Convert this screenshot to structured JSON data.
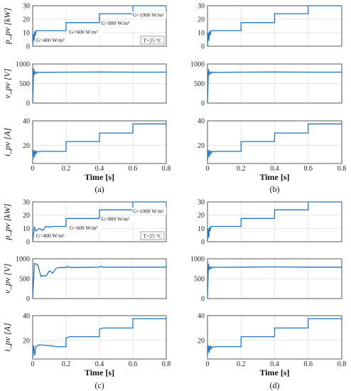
{
  "chart_data": [
    {
      "panel": "(a)",
      "type": "line",
      "xlabel": "Time [s]",
      "caption": "(a)",
      "xlim": [
        0,
        0.8
      ],
      "xticks": [
        "0",
        "0.2",
        "0.4",
        "0.6",
        "0.8"
      ],
      "temperature_note": "T=25 °C",
      "irradiance_labels": [
        "G=400 W/m²",
        "G=600 W/m²",
        "G=800 W/m²",
        "G=1000 W/m²"
      ],
      "subplots": [
        {
          "ylabel": "p_pv [kW]",
          "ylim": [
            0,
            30
          ],
          "yticks": [
            "0",
            "10",
            "20",
            "30"
          ],
          "x": [
            0,
            0.004,
            0.008,
            0.012,
            0.016,
            0.02,
            0.03,
            0.05,
            0.2,
            0.2,
            0.4,
            0.4,
            0.6,
            0.6,
            0.8
          ],
          "y": [
            0,
            9,
            4,
            11,
            8,
            11.5,
            11.5,
            11.5,
            11.5,
            17.5,
            17.5,
            24,
            24,
            30,
            30
          ]
        },
        {
          "ylabel": "v_pv [V]",
          "ylim": [
            0,
            1000
          ],
          "yticks": [
            "0",
            "500",
            "1000"
          ],
          "x": [
            0,
            0.006,
            0.012,
            0.018,
            0.024,
            0.03,
            0.04,
            0.2,
            0.4,
            0.6,
            0.8
          ],
          "y": [
            0,
            880,
            740,
            800,
            760,
            790,
            785,
            790,
            795,
            790,
            790
          ]
        },
        {
          "ylabel": "i_pv [A]",
          "ylim": [
            5,
            40
          ],
          "yticks": [
            "20",
            "40"
          ],
          "x": [
            0,
            0.005,
            0.01,
            0.015,
            0.02,
            0.025,
            0.03,
            0.05,
            0.2,
            0.2,
            0.4,
            0.4,
            0.6,
            0.6,
            0.8
          ],
          "y": [
            8,
            16,
            10,
            16,
            13,
            15,
            14.5,
            15,
            15,
            23,
            23,
            30,
            30,
            37.5,
            37.5
          ]
        }
      ]
    },
    {
      "panel": "(b)",
      "type": "line",
      "xlabel": "Time [s]",
      "caption": "(b)",
      "xlim": [
        0,
        0.8
      ],
      "xticks": [
        "0",
        "0.2",
        "0.4",
        "0.6",
        "0.8"
      ],
      "subplots": [
        {
          "ylabel": "",
          "ylim": [
            0,
            30
          ],
          "yticks": [
            "0",
            "10",
            "20",
            "30"
          ],
          "x": [
            0,
            0.004,
            0.008,
            0.012,
            0.016,
            0.02,
            0.03,
            0.05,
            0.2,
            0.2,
            0.4,
            0.4,
            0.6,
            0.6,
            0.8
          ],
          "y": [
            0,
            10,
            4,
            11,
            8,
            11.5,
            11.5,
            11.5,
            11.5,
            17.5,
            17.5,
            24,
            24,
            30,
            30
          ]
        },
        {
          "ylabel": "",
          "ylim": [
            0,
            1000
          ],
          "yticks": [
            "0",
            "500",
            "1000"
          ],
          "x": [
            0,
            0.006,
            0.012,
            0.018,
            0.024,
            0.03,
            0.04,
            0.2,
            0.4,
            0.6,
            0.8
          ],
          "y": [
            0,
            870,
            720,
            800,
            760,
            790,
            785,
            790,
            795,
            790,
            790
          ]
        },
        {
          "ylabel": "",
          "ylim": [
            5,
            40
          ],
          "yticks": [
            "20",
            "40"
          ],
          "x": [
            0,
            0.005,
            0.01,
            0.015,
            0.02,
            0.025,
            0.03,
            0.05,
            0.2,
            0.2,
            0.4,
            0.4,
            0.6,
            0.6,
            0.8
          ],
          "y": [
            8,
            16,
            10,
            16,
            13,
            15,
            14.5,
            15,
            15,
            23,
            23,
            30,
            30,
            37.5,
            37.5
          ]
        }
      ]
    },
    {
      "panel": "(c)",
      "type": "line",
      "xlabel": "Time [s]",
      "caption": "(c)",
      "xlim": [
        0,
        0.8
      ],
      "xticks": [
        "0",
        "0.2",
        "0.4",
        "0.6",
        "0.8"
      ],
      "temperature_note": "T=25 °C",
      "irradiance_labels": [
        "G=400 W/m²",
        "G=600 W/m²",
        "G=800 W/m²",
        "G=1000 W/m²"
      ],
      "subplots": [
        {
          "ylabel": "p_pv [kW]",
          "ylim": [
            0,
            30
          ],
          "yticks": [
            "0",
            "10",
            "20",
            "30"
          ],
          "x": [
            0,
            0.005,
            0.01,
            0.02,
            0.04,
            0.06,
            0.08,
            0.1,
            0.12,
            0.14,
            0.15,
            0.2,
            0.2,
            0.4,
            0.4,
            0.6,
            0.6,
            0.8
          ],
          "y": [
            0,
            6,
            11,
            8,
            10,
            8.5,
            11.5,
            11,
            11.5,
            11.5,
            11.5,
            11.5,
            17.5,
            17.5,
            24,
            24,
            30,
            30
          ]
        },
        {
          "ylabel": "v_pv [V]",
          "ylim": [
            0,
            1000
          ],
          "yticks": [
            "0",
            "500",
            "1000"
          ],
          "x": [
            0,
            0.01,
            0.03,
            0.05,
            0.06,
            0.08,
            0.1,
            0.12,
            0.14,
            0.16,
            0.2,
            0.21,
            0.22,
            0.4,
            0.41,
            0.42,
            0.6,
            0.8
          ],
          "y": [
            0,
            880,
            850,
            550,
            580,
            560,
            700,
            640,
            760,
            780,
            780,
            810,
            780,
            790,
            810,
            790,
            790,
            790
          ]
        },
        {
          "ylabel": "i_pv [A]",
          "ylim": [
            5,
            40
          ],
          "yticks": [
            "20",
            "40"
          ],
          "x": [
            0,
            0.006,
            0.012,
            0.02,
            0.04,
            0.08,
            0.12,
            0.14,
            0.15,
            0.2,
            0.2,
            0.22,
            0.4,
            0.4,
            0.42,
            0.6,
            0.6,
            0.8
          ],
          "y": [
            6,
            16,
            8,
            15,
            16.5,
            16,
            15.5,
            15,
            15,
            15,
            22,
            23,
            23,
            29,
            30,
            30,
            37.5,
            37.5
          ]
        }
      ]
    },
    {
      "panel": "(d)",
      "type": "line",
      "xlabel": "Time [s]",
      "caption": "(d)",
      "xlim": [
        0,
        0.8
      ],
      "xticks": [
        "0",
        "0.2",
        "0.4",
        "0.6",
        "0.8"
      ],
      "subplots": [
        {
          "ylabel": "",
          "ylim": [
            0,
            30
          ],
          "yticks": [
            "0",
            "10",
            "20",
            "30"
          ],
          "x": [
            0,
            0.004,
            0.008,
            0.012,
            0.016,
            0.02,
            0.03,
            0.05,
            0.2,
            0.2,
            0.4,
            0.4,
            0.6,
            0.6,
            0.8
          ],
          "y": [
            0,
            10,
            3,
            11,
            8,
            11.5,
            11.5,
            11.5,
            11.5,
            17.5,
            17.5,
            24,
            24,
            30,
            30
          ]
        },
        {
          "ylabel": "",
          "ylim": [
            0,
            1000
          ],
          "yticks": [
            "0",
            "500",
            "1000"
          ],
          "x": [
            0,
            0.006,
            0.012,
            0.018,
            0.024,
            0.03,
            0.04,
            0.2,
            0.4,
            0.6,
            0.8
          ],
          "y": [
            0,
            880,
            720,
            800,
            760,
            790,
            785,
            790,
            795,
            790,
            790
          ]
        },
        {
          "ylabel": "",
          "ylim": [
            5,
            40
          ],
          "yticks": [
            "20",
            "40"
          ],
          "x": [
            0,
            0.005,
            0.01,
            0.015,
            0.02,
            0.025,
            0.03,
            0.05,
            0.2,
            0.2,
            0.4,
            0.4,
            0.6,
            0.6,
            0.8
          ],
          "y": [
            8,
            16,
            10,
            16,
            13,
            15,
            14.5,
            15,
            15,
            23,
            23,
            30,
            30,
            37.5,
            37.5
          ]
        }
      ]
    }
  ],
  "line_color": "#1f77c4",
  "grid_color": "#dddddd"
}
